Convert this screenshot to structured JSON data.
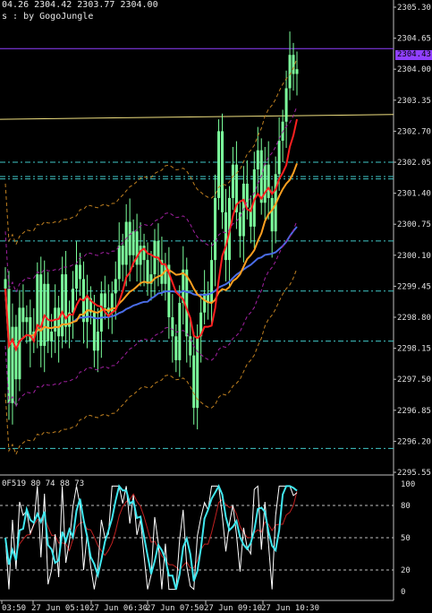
{
  "header": {
    "ohlc_line": "04.26 2304.42 2303.77 2304.00",
    "subtitle": "s : by GogoJungle"
  },
  "indicator": {
    "label": "0F519 80 74 88 73",
    "levels": [
      "100",
      "80",
      "50",
      "20",
      "0"
    ]
  },
  "price_axis": {
    "ticks": [
      "2305.30",
      "2304.65",
      "2304.00",
      "2303.35",
      "2302.70",
      "2302.05",
      "2301.40",
      "2300.75",
      "2300.10",
      "2299.45",
      "2298.80",
      "2298.15",
      "2297.50",
      "2296.85",
      "2296.20",
      "2295.55"
    ],
    "current_label": "2304.43"
  },
  "time_axis": {
    "labels": [
      "03:50",
      "27 Jun 05:10",
      "27 Jun 06:30",
      "27 Jun 07:50",
      "27 Jun 09:10",
      "27 Jun 10:30"
    ]
  },
  "colors": {
    "background": "#000000",
    "candle": "#7cff9c",
    "ma_blue": "#4a6de8",
    "ma_red": "#ff2020",
    "ma_orange": "#ffa020",
    "band_purple": "#a020a0",
    "band_orange": "#c08020",
    "hline_cyan": "#40c8c8",
    "hline_purple": "#9040ff",
    "trend_yellow": "#f0e080",
    "osc_white": "#ffffff",
    "osc_cyan": "#40e8f0",
    "osc_red": "#ff5030",
    "osc_darkred": "#c02020"
  },
  "chart_data": {
    "type": "line",
    "title": "",
    "instrument_note": "intraday candlestick chart with moving averages and oscillator",
    "price_range": [
      2295.55,
      2305.3
    ],
    "horizontal_levels": [
      2304.43,
      2302.05,
      2301.75,
      2301.7,
      2300.4,
      2299.35,
      2298.3,
      2296.05
    ],
    "trend_line": {
      "start": 2302.95,
      "end": 2303.05
    },
    "close_series": [
      2299.4,
      2297.0,
      2298.6,
      2297.5,
      2299.0,
      2298.7,
      2298.8,
      2298.3,
      2298.5,
      2299.7,
      2298.2,
      2299.5,
      2298.3,
      2298.5,
      2299.0,
      2298.4,
      2299.7,
      2298.6,
      2298.9,
      2299.4,
      2299.9,
      2299.6,
      2298.7,
      2299.2,
      2298.9,
      2298.1,
      2298.5,
      2299.3,
      2299.0,
      2298.9,
      2299.3,
      2299.6,
      2300.3,
      2299.9,
      2300.8,
      2300.1,
      2300.6,
      2299.9,
      2300.3,
      2300.0,
      2299.5,
      2299.7,
      2300.4,
      2300.0,
      2299.5,
      2299.9,
      2298.8,
      2298.4,
      2297.9,
      2299.1,
      2299.8,
      2298.4,
      2298.0,
      2296.9,
      2298.4,
      2298.9,
      2299.3,
      2299.1,
      2300.0,
      2301.3,
      2302.7,
      2301.0,
      2300.0,
      2301.3,
      2302.0,
      2301.0,
      2300.5,
      2301.6,
      2301.1,
      2300.7,
      2301.9,
      2302.3,
      2301.2,
      2302.0,
      2301.3,
      2300.6,
      2301.8,
      2302.5,
      2302.9,
      2303.6,
      2304.3,
      2303.9,
      2304.0
    ]
  }
}
